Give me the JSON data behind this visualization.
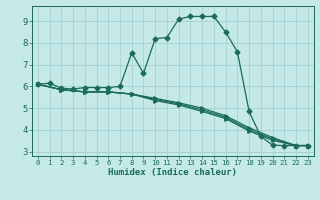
{
  "xlabel": "Humidex (Indice chaleur)",
  "bg_color": "#c5e8e8",
  "grid_color": "#9fcece",
  "line_color": "#1a6b5a",
  "xlim": [
    -0.5,
    23.5
  ],
  "ylim": [
    2.8,
    9.7
  ],
  "xticks": [
    0,
    1,
    2,
    3,
    4,
    5,
    6,
    7,
    8,
    9,
    10,
    11,
    12,
    13,
    14,
    15,
    16,
    17,
    18,
    19,
    20,
    21,
    22,
    23
  ],
  "yticks": [
    3,
    4,
    5,
    6,
    7,
    8,
    9
  ],
  "series": [
    {
      "x": [
        0,
        1,
        2,
        3,
        4,
        5,
        6,
        7,
        8,
        9,
        10,
        11,
        12,
        13,
        14,
        15,
        16,
        17,
        18,
        19,
        20,
        21,
        22,
        23
      ],
      "y": [
        6.1,
        6.15,
        5.92,
        5.88,
        5.95,
        5.95,
        5.95,
        6.0,
        7.55,
        6.6,
        8.2,
        8.25,
        9.1,
        9.22,
        9.22,
        9.22,
        8.5,
        7.6,
        4.85,
        3.7,
        3.3,
        3.28,
        3.28,
        3.28
      ],
      "marker": "D",
      "ms": 2.5
    },
    {
      "x": [
        0,
        2,
        4,
        6,
        8,
        10,
        12,
        14,
        16,
        18,
        20,
        22,
        23
      ],
      "y": [
        6.1,
        5.85,
        5.75,
        5.75,
        5.65,
        5.45,
        5.25,
        5.0,
        4.65,
        4.1,
        3.65,
        3.28,
        3.28
      ],
      "marker": ">",
      "ms": 2.5
    },
    {
      "x": [
        0,
        2,
        4,
        6,
        8,
        10,
        12,
        14,
        16,
        18,
        20,
        22,
        23
      ],
      "y": [
        6.1,
        5.85,
        5.75,
        5.75,
        5.65,
        5.4,
        5.2,
        4.92,
        4.58,
        4.02,
        3.58,
        3.28,
        3.28
      ],
      "marker": ">",
      "ms": 2.5
    },
    {
      "x": [
        0,
        2,
        4,
        6,
        8,
        10,
        12,
        14,
        16,
        18,
        20,
        22,
        23
      ],
      "y": [
        6.1,
        5.85,
        5.75,
        5.75,
        5.65,
        5.35,
        5.15,
        4.85,
        4.52,
        3.95,
        3.52,
        3.28,
        3.28
      ],
      "marker": ">",
      "ms": 2.5
    }
  ]
}
